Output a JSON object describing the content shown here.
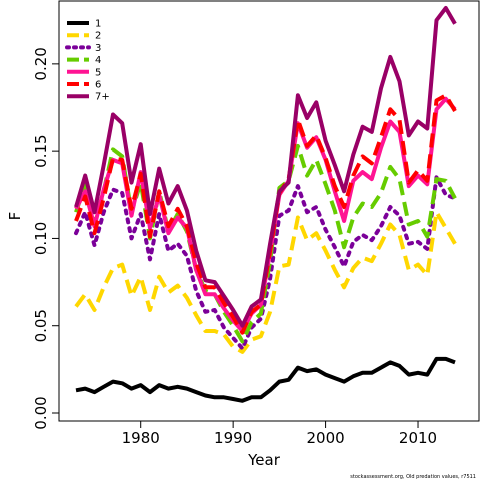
{
  "chart_data": {
    "type": "line",
    "title": "",
    "xlabel": "Year",
    "ylabel": "F",
    "xlim": [
      1972,
      2015
    ],
    "ylim": [
      0,
      0.24
    ],
    "x_ticks": [
      1980,
      1990,
      2000,
      2010
    ],
    "y_ticks": [
      0.0,
      0.05,
      0.1,
      0.15,
      0.2
    ],
    "y_tick_labels": [
      "0.00",
      "0.05",
      "0.10",
      "0.15",
      "0.20"
    ],
    "grid": false,
    "legend_position": "top-left",
    "x": [
      1973,
      1974,
      1975,
      1976,
      1977,
      1978,
      1979,
      1980,
      1981,
      1982,
      1983,
      1984,
      1985,
      1986,
      1987,
      1988,
      1989,
      1990,
      1991,
      1992,
      1993,
      1994,
      1995,
      1996,
      1997,
      1998,
      1999,
      2000,
      2001,
      2002,
      2003,
      2004,
      2005,
      2006,
      2007,
      2008,
      2009,
      2010,
      2011,
      2012,
      2013,
      2014
    ],
    "series": [
      {
        "name": "1",
        "color": "#000000",
        "dash": "solid",
        "values": [
          0.013,
          0.014,
          0.012,
          0.015,
          0.018,
          0.017,
          0.014,
          0.016,
          0.012,
          0.016,
          0.014,
          0.015,
          0.014,
          0.012,
          0.01,
          0.009,
          0.009,
          0.008,
          0.007,
          0.009,
          0.009,
          0.013,
          0.018,
          0.019,
          0.026,
          0.024,
          0.025,
          0.022,
          0.02,
          0.018,
          0.021,
          0.023,
          0.023,
          0.026,
          0.029,
          0.027,
          0.022,
          0.023,
          0.022,
          0.031,
          0.031,
          0.029
        ]
      },
      {
        "name": "2",
        "color": "#FFD700",
        "dash": "long",
        "values": [
          0.061,
          0.068,
          0.059,
          0.072,
          0.083,
          0.085,
          0.067,
          0.078,
          0.059,
          0.078,
          0.069,
          0.073,
          0.066,
          0.056,
          0.047,
          0.047,
          0.045,
          0.038,
          0.035,
          0.042,
          0.044,
          0.058,
          0.084,
          0.085,
          0.112,
          0.099,
          0.103,
          0.093,
          0.082,
          0.072,
          0.083,
          0.089,
          0.087,
          0.097,
          0.108,
          0.102,
          0.082,
          0.085,
          0.079,
          0.115,
          0.106,
          0.097
        ]
      },
      {
        "name": "3",
        "color": "#7B0099",
        "dash": "dotted",
        "values": [
          0.103,
          0.115,
          0.096,
          0.115,
          0.128,
          0.126,
          0.1,
          0.114,
          0.088,
          0.114,
          0.093,
          0.097,
          0.09,
          0.07,
          0.058,
          0.059,
          0.049,
          0.043,
          0.037,
          0.049,
          0.054,
          0.077,
          0.113,
          0.116,
          0.13,
          0.115,
          0.118,
          0.105,
          0.095,
          0.084,
          0.098,
          0.102,
          0.099,
          0.107,
          0.118,
          0.113,
          0.097,
          0.098,
          0.094,
          0.135,
          0.125,
          0.123
        ]
      },
      {
        "name": "4",
        "color": "#66CC00",
        "dash": "long",
        "values": [
          0.115,
          0.131,
          0.108,
          0.127,
          0.151,
          0.147,
          0.115,
          0.132,
          0.1,
          0.127,
          0.104,
          0.114,
          0.104,
          0.082,
          0.07,
          0.068,
          0.058,
          0.05,
          0.041,
          0.052,
          0.057,
          0.087,
          0.129,
          0.133,
          0.153,
          0.136,
          0.145,
          0.131,
          0.116,
          0.095,
          0.112,
          0.12,
          0.118,
          0.126,
          0.141,
          0.134,
          0.108,
          0.11,
          0.101,
          0.134,
          0.133,
          0.123
        ]
      },
      {
        "name": "5",
        "color": "#FF1493",
        "dash": "solid",
        "values": [
          0.117,
          0.127,
          0.107,
          0.128,
          0.145,
          0.143,
          0.113,
          0.138,
          0.106,
          0.125,
          0.103,
          0.112,
          0.106,
          0.082,
          0.068,
          0.068,
          0.06,
          0.053,
          0.047,
          0.057,
          0.062,
          0.092,
          0.125,
          0.133,
          0.166,
          0.152,
          0.158,
          0.145,
          0.127,
          0.11,
          0.133,
          0.138,
          0.134,
          0.152,
          0.167,
          0.161,
          0.13,
          0.136,
          0.131,
          0.174,
          0.18,
          0.174
        ]
      },
      {
        "name": "6",
        "color": "#FF0000",
        "dash": "long",
        "values": [
          0.11,
          0.124,
          0.103,
          0.123,
          0.146,
          0.145,
          0.117,
          0.137,
          0.101,
          0.127,
          0.107,
          0.117,
          0.107,
          0.086,
          0.072,
          0.072,
          0.063,
          0.055,
          0.046,
          0.058,
          0.062,
          0.093,
          0.126,
          0.134,
          0.168,
          0.153,
          0.159,
          0.146,
          0.13,
          0.118,
          0.136,
          0.147,
          0.143,
          0.158,
          0.174,
          0.168,
          0.132,
          0.139,
          0.133,
          0.179,
          0.182,
          0.173
        ]
      },
      {
        "name": "7+",
        "color": "#990066",
        "dash": "solid",
        "values": [
          0.118,
          0.136,
          0.115,
          0.142,
          0.171,
          0.166,
          0.132,
          0.154,
          0.114,
          0.14,
          0.12,
          0.13,
          0.116,
          0.093,
          0.076,
          0.075,
          0.067,
          0.059,
          0.05,
          0.061,
          0.065,
          0.097,
          0.127,
          0.132,
          0.182,
          0.169,
          0.178,
          0.156,
          0.142,
          0.127,
          0.148,
          0.164,
          0.161,
          0.186,
          0.204,
          0.19,
          0.159,
          0.167,
          0.163,
          0.225,
          0.232,
          0.223
        ]
      }
    ],
    "credit": "stockassessment.org,  Old  predation  values,  r7511"
  }
}
